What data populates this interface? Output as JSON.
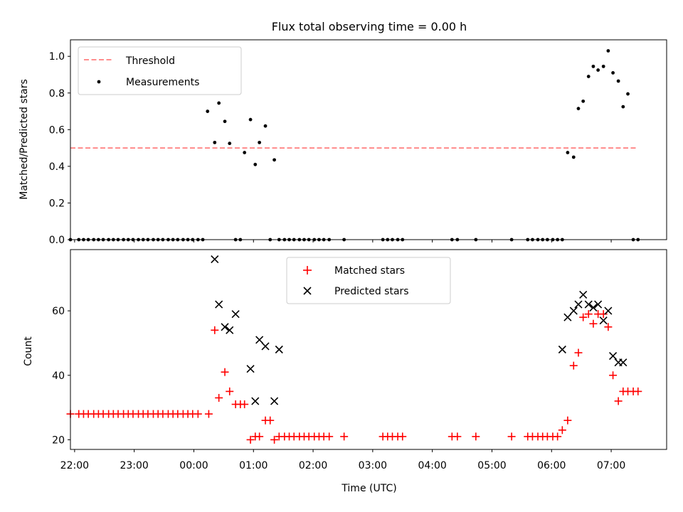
{
  "title": "Flux total observing time = 0.00 h",
  "colors": {
    "threshold": "#ff7f7f",
    "measurements": "#000000",
    "matched": "#ff0000",
    "predicted": "#000000"
  },
  "chart_data": [
    {
      "type": "scatter",
      "ylabel": "Matched/Predicted stars",
      "xlim": [
        21.93,
        31.93
      ],
      "ylim": [
        0,
        1.09
      ],
      "yticks": [
        "0.0",
        "0.2",
        "0.4",
        "0.6",
        "0.8",
        "1.0"
      ],
      "ytick_values": [
        0,
        0.2,
        0.4,
        0.6,
        0.8,
        1.0
      ],
      "grid": false,
      "legend_position": "upper left",
      "legend": [
        "Threshold",
        "Measurements"
      ],
      "threshold": {
        "name": "Threshold",
        "y": 0.5,
        "x_range": [
          21.93,
          31.42
        ]
      },
      "series": [
        {
          "name": "Measurements",
          "x": [
            21.93,
            22.07,
            22.15,
            22.23,
            22.32,
            22.4,
            22.48,
            22.57,
            22.65,
            22.73,
            22.82,
            22.9,
            22.98,
            23.07,
            23.15,
            23.23,
            23.32,
            23.4,
            23.48,
            23.57,
            23.65,
            23.73,
            23.82,
            23.9,
            23.98,
            24.07,
            24.15,
            24.23,
            24.35,
            24.42,
            24.52,
            24.6,
            24.7,
            24.78,
            24.85,
            24.95,
            25.03,
            25.1,
            25.2,
            25.28,
            25.35,
            25.43,
            25.52,
            25.6,
            25.68,
            25.77,
            25.85,
            25.93,
            26.02,
            26.1,
            26.18,
            26.27,
            26.52,
            27.17,
            27.25,
            27.33,
            27.42,
            27.5,
            28.33,
            28.42,
            28.73,
            29.33,
            29.6,
            29.68,
            29.77,
            29.85,
            29.93,
            30.02,
            30.1,
            30.18,
            30.27,
            30.37,
            30.45,
            30.53,
            30.62,
            30.7,
            30.78,
            30.87,
            30.95,
            31.03,
            31.12,
            31.2,
            31.28,
            31.37,
            31.45
          ],
          "y": [
            0,
            0,
            0,
            0,
            0,
            0,
            0,
            0,
            0,
            0,
            0,
            0,
            0,
            0,
            0,
            0,
            0,
            0,
            0,
            0,
            0,
            0,
            0,
            0,
            0,
            0,
            0,
            0.7,
            0.53,
            0.745,
            0.645,
            0.525,
            0,
            0,
            0.475,
            0.655,
            0.41,
            0.53,
            0.62,
            0,
            0.435,
            0,
            0,
            0,
            0,
            0,
            0,
            0,
            0,
            0,
            0,
            0,
            0,
            0,
            0,
            0,
            0,
            0,
            0,
            0,
            0,
            0,
            0,
            0,
            0,
            0,
            0,
            0,
            0,
            0,
            0.475,
            0.45,
            0.715,
            0.755,
            0.89,
            0.945,
            0.925,
            0.945,
            1.03,
            0.91,
            0.865,
            0.725,
            0.795,
            0,
            0
          ]
        }
      ]
    },
    {
      "type": "scatter",
      "xlabel": "Time (UTC)",
      "ylabel": "Count",
      "xlim": [
        21.93,
        31.93
      ],
      "ylim": [
        17,
        79
      ],
      "yticks": [
        "20",
        "40",
        "60"
      ],
      "ytick_values": [
        20,
        40,
        60
      ],
      "xticks": [
        "22:00",
        "23:00",
        "00:00",
        "01:00",
        "02:00",
        "03:00",
        "04:00",
        "05:00",
        "06:00",
        "07:00"
      ],
      "xtick_values": [
        22,
        23,
        24,
        25,
        26,
        27,
        28,
        29,
        30,
        31
      ],
      "grid": false,
      "legend_position": "upper center",
      "legend": [
        "Matched stars",
        "Predicted stars"
      ],
      "series": [
        {
          "name": "Matched stars",
          "marker": "plus",
          "x": [
            21.93,
            22.07,
            22.15,
            22.23,
            22.32,
            22.4,
            22.48,
            22.57,
            22.65,
            22.73,
            22.82,
            22.9,
            22.98,
            23.07,
            23.15,
            23.23,
            23.32,
            23.4,
            23.48,
            23.57,
            23.65,
            23.73,
            23.82,
            23.9,
            23.98,
            24.07,
            24.25,
            24.35,
            24.42,
            24.52,
            24.6,
            24.7,
            24.78,
            24.85,
            24.95,
            25.03,
            25.1,
            25.2,
            25.28,
            25.35,
            25.43,
            25.52,
            25.6,
            25.68,
            25.77,
            25.85,
            25.93,
            26.02,
            26.1,
            26.18,
            26.27,
            26.52,
            27.17,
            27.25,
            27.33,
            27.42,
            27.5,
            28.33,
            28.42,
            28.73,
            29.33,
            29.6,
            29.68,
            29.77,
            29.85,
            29.93,
            30.02,
            30.1,
            30.18,
            30.27,
            30.37,
            30.45,
            30.53,
            30.62,
            30.7,
            30.78,
            30.87,
            30.95,
            31.03,
            31.12,
            31.2,
            31.28,
            31.37,
            31.45
          ],
          "y": [
            28,
            28,
            28,
            28,
            28,
            28,
            28,
            28,
            28,
            28,
            28,
            28,
            28,
            28,
            28,
            28,
            28,
            28,
            28,
            28,
            28,
            28,
            28,
            28,
            28,
            28,
            28,
            54,
            33,
            41,
            35,
            31,
            31,
            31,
            20,
            21,
            21,
            26,
            26,
            20,
            21,
            21,
            21,
            21,
            21,
            21,
            21,
            21,
            21,
            21,
            21,
            21,
            21,
            21,
            21,
            21,
            21,
            21,
            21,
            21,
            21,
            21,
            21,
            21,
            21,
            21,
            21,
            21,
            23,
            26,
            43,
            47,
            58,
            59,
            56,
            59,
            59,
            55,
            40,
            32,
            35,
            35,
            35,
            35
          ]
        },
        {
          "name": "Predicted stars",
          "marker": "x",
          "x": [
            24.35,
            24.42,
            24.52,
            24.6,
            24.7,
            24.95,
            25.03,
            25.1,
            25.2,
            25.35,
            25.43,
            30.18,
            30.27,
            30.37,
            30.45,
            30.53,
            30.62,
            30.7,
            30.78,
            30.87,
            30.95,
            31.03,
            31.12,
            31.2
          ],
          "y": [
            76,
            62,
            55,
            54,
            59,
            42,
            32,
            51,
            49,
            32,
            48,
            48,
            58,
            60,
            62,
            65,
            62,
            61,
            62,
            57,
            60,
            46,
            44,
            44
          ]
        }
      ]
    }
  ]
}
